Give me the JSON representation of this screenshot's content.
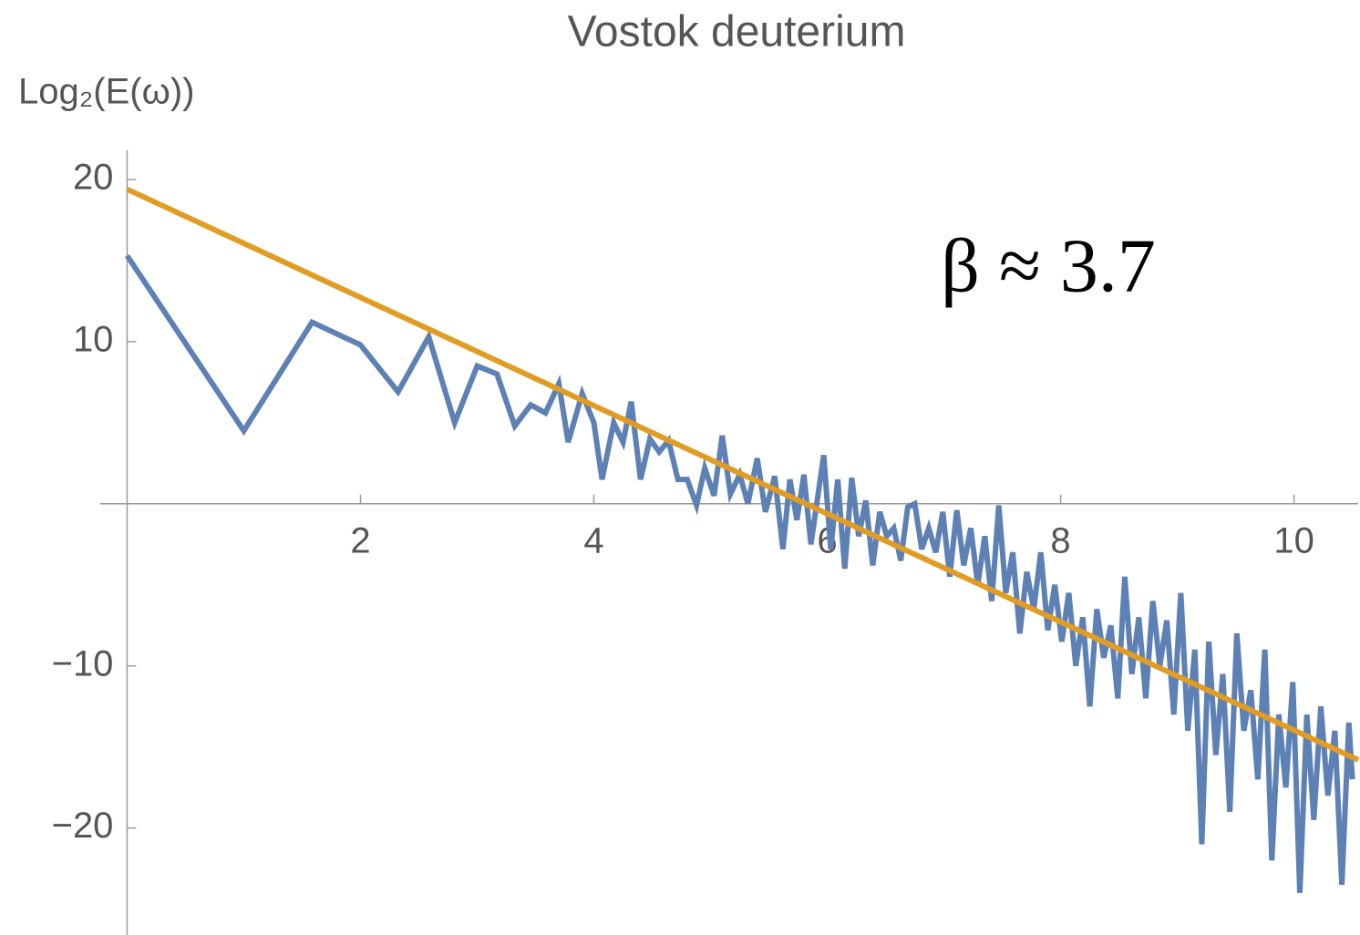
{
  "chart_data": {
    "type": "line",
    "title": "Vostok deuterium",
    "y_label": "Log₂(E(ω))",
    "annotation": "β ≈ 3.7",
    "xlim": [
      -0.23,
      10.55
    ],
    "ylim": [
      -26.6,
      21.8
    ],
    "xticks": [
      2,
      4,
      6,
      8,
      10
    ],
    "yticks": [
      {
        "value": -20,
        "label": "−20"
      },
      {
        "value": -10,
        "label": "−10"
      },
      10,
      20
    ],
    "series": [
      {
        "color": "#5e81b5",
        "x": [
          0,
          1,
          1.585,
          2,
          2.322,
          2.585,
          2.807,
          3,
          3.17,
          3.322,
          3.459,
          3.585,
          3.7,
          3.78,
          3.9,
          4.0,
          4.07,
          4.17,
          4.25,
          4.32,
          4.4,
          4.48,
          4.56,
          4.64,
          4.72,
          4.8,
          4.88,
          4.95,
          5.03,
          5.1,
          5.17,
          5.25,
          5.32,
          5.4,
          5.47,
          5.55,
          5.62,
          5.68,
          5.74,
          5.8,
          5.86,
          5.92,
          5.97,
          6.03,
          6.09,
          6.15,
          6.21,
          6.27,
          6.33,
          6.39,
          6.45,
          6.51,
          6.57,
          6.63,
          6.69,
          6.75,
          6.81,
          6.87,
          6.93,
          6.99,
          7.05,
          7.11,
          7.17,
          7.23,
          7.29,
          7.35,
          7.41,
          7.47,
          7.53,
          7.59,
          7.65,
          7.71,
          7.77,
          7.83,
          7.89,
          7.95,
          8.01,
          8.07,
          8.13,
          8.19,
          8.25,
          8.31,
          8.37,
          8.43,
          8.49,
          8.55,
          8.61,
          8.67,
          8.73,
          8.79,
          8.85,
          8.91,
          8.97,
          9.03,
          9.09,
          9.15,
          9.21,
          9.27,
          9.33,
          9.39,
          9.45,
          9.51,
          9.57,
          9.63,
          9.69,
          9.75,
          9.81,
          9.87,
          9.93,
          9.99,
          10.05,
          10.11,
          10.17,
          10.23,
          10.29,
          10.35,
          10.41,
          10.47,
          10.5
        ],
        "values": [
          15.3,
          4.5,
          11.2,
          9.8,
          6.9,
          10.3,
          5.0,
          8.5,
          8.0,
          4.8,
          6.1,
          5.6,
          7.4,
          3.8,
          6.8,
          5.0,
          1.5,
          5.0,
          3.8,
          6.3,
          1.5,
          4.0,
          3.2,
          3.9,
          1.5,
          1.5,
          -0.1,
          2.2,
          0.5,
          4.2,
          0.6,
          1.8,
          0.0,
          2.8,
          -0.5,
          1.7,
          -2.8,
          1.5,
          -1.0,
          1.8,
          -2.5,
          0.5,
          3.0,
          -2.8,
          1.5,
          -4.0,
          1.6,
          -2.0,
          0.2,
          -3.8,
          -0.5,
          -2.0,
          -1.5,
          -3.5,
          -0.2,
          0.0,
          -2.8,
          -1.5,
          -3.0,
          -0.5,
          -4.5,
          -0.4,
          -3.8,
          -1.5,
          -5.0,
          -2.0,
          -6.0,
          -0.1,
          -5.5,
          -3.0,
          -8.0,
          -4.2,
          -6.5,
          -3.0,
          -7.8,
          -5.0,
          -8.5,
          -5.5,
          -10.0,
          -7.0,
          -12.5,
          -6.5,
          -9.5,
          -7.5,
          -12.0,
          -4.5,
          -10.5,
          -7.0,
          -12.0,
          -6.0,
          -10.0,
          -7.2,
          -13.0,
          -5.5,
          -14.0,
          -9.0,
          -21.0,
          -8.5,
          -15.5,
          -10.5,
          -19.0,
          -8.0,
          -14.0,
          -11.5,
          -17.0,
          -9.0,
          -22.0,
          -13.0,
          -17.5,
          -11.0,
          -24.0,
          -13.0,
          -19.5,
          -12.5,
          -18.0,
          -14.0,
          -23.5,
          -13.5,
          -17.0
        ]
      },
      {
        "color": "#e19c24",
        "x": [
          0,
          10.55
        ],
        "values": [
          19.4,
          -15.8
        ]
      }
    ]
  }
}
